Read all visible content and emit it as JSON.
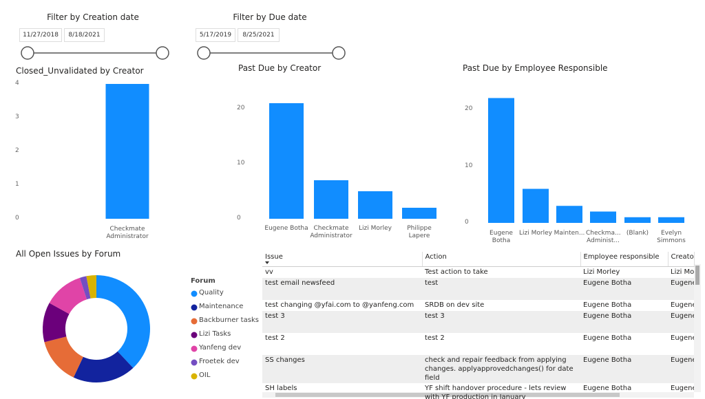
{
  "filters": [
    {
      "title": "Filter by Creation date",
      "start": "11/27/2018",
      "end": "8/18/2021"
    },
    {
      "title": "Filter by Due date",
      "start": "5/17/2019",
      "end": "8/25/2021"
    }
  ],
  "chart_data": [
    {
      "type": "bar",
      "title": "Closed_Unvalidated by Creator",
      "categories": [
        "Checkmate Administrator"
      ],
      "values": [
        4
      ],
      "color": "#118dff",
      "ylim": [
        0,
        4
      ],
      "yticks": [
        0,
        1,
        2,
        3,
        4
      ],
      "grid": false
    },
    {
      "type": "bar",
      "title": "Past Due by Creator",
      "categories": [
        "Eugene Botha",
        "Checkmate Administrator",
        "Lizi Morley",
        "Philippe Lapere"
      ],
      "values": [
        21,
        7,
        5,
        2
      ],
      "color": "#118dff",
      "ylim": [
        0,
        23
      ],
      "yticks": [
        0,
        10,
        20
      ],
      "grid": false
    },
    {
      "type": "bar",
      "title": "Past Due by Employee Responsible",
      "categories": [
        "Eugene Botha",
        "Lizi Morley",
        "Mainten...",
        "Checkma... Administ...",
        "(Blank)",
        "Evelyn Simmons"
      ],
      "values": [
        22,
        6,
        3,
        2,
        1,
        1
      ],
      "color": "#118dff",
      "ylim": [
        0,
        23
      ],
      "yticks": [
        0,
        10,
        20
      ],
      "grid": false
    },
    {
      "type": "donut",
      "title": "All Open Issues by Forum",
      "legend_title": "Forum",
      "legend": "right",
      "categories": [
        "Quality",
        "Maintenance",
        "Backburner tasks",
        "Lizi Tasks",
        "Yanfeng dev",
        "Froetek dev",
        "OIL"
      ],
      "values": [
        38,
        19,
        14,
        12,
        12,
        2,
        3
      ],
      "colors": [
        "#118dff",
        "#12239e",
        "#e66c37",
        "#6b007b",
        "#e044a7",
        "#744ec2",
        "#d9b300"
      ]
    }
  ],
  "table": {
    "columns": [
      "Issue",
      "Action",
      "Employee responsible",
      "Creator"
    ],
    "rows": [
      [
        "vv",
        "Test action to take",
        "Lizi Morley",
        "Lizi Morley"
      ],
      [
        "test email newsfeed",
        "test",
        "Eugene Botha",
        "Eugene Botha"
      ],
      [
        "test changing @yfai.com to @yanfeng.com",
        "SRDB on dev site",
        "Eugene Botha",
        "Eugene Botha"
      ],
      [
        "test 3",
        "test 3",
        "Eugene Botha",
        "Eugene Botha"
      ],
      [
        "test 2",
        "test 2",
        "Eugene Botha",
        "Eugene Botha"
      ],
      [
        "SS changes",
        "check and repair feedback from applying changes. applyapprovedchanges() for date field",
        "Eugene Botha",
        "Eugene Botha"
      ],
      [
        "SH labels",
        "YF shift handover procedure - lets review with YF production in January",
        "Eugene Botha",
        "Eugene Botha"
      ]
    ]
  }
}
